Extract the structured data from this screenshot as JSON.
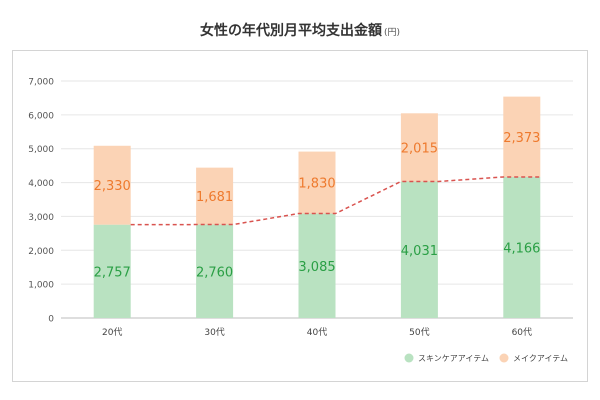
{
  "chart_data": {
    "type": "bar",
    "stacked": true,
    "title": "女性の年代別月平均支出金額",
    "unit": "(円)",
    "categories": [
      "20代",
      "30代",
      "40代",
      "50代",
      "60代"
    ],
    "series": [
      {
        "name": "スキンケアアイテム",
        "values": [
          2757,
          2760,
          3085,
          4031,
          4166
        ],
        "color": "#b9e2c1",
        "label_color": "#2a9f45"
      },
      {
        "name": "メイクアイテム",
        "values": [
          2330,
          1681,
          1830,
          2015,
          2373
        ],
        "color": "#fbd3b5",
        "label_color": "#ee7a2e"
      }
    ],
    "value_labels": [
      [
        "2,757",
        "2,760",
        "3,085",
        "4,031",
        "4,166"
      ],
      [
        "2,330",
        "1,681",
        "1,830",
        "2,015",
        "2,373"
      ]
    ],
    "overlay_line": {
      "values": [
        2757,
        2760,
        3085,
        4031,
        4166
      ],
      "color": "#d9534f",
      "style": "dashed"
    },
    "ylim": [
      0,
      7000
    ],
    "yticks": [
      0,
      1000,
      2000,
      3000,
      4000,
      5000,
      6000,
      7000
    ],
    "ytick_labels": [
      "0",
      "1,000",
      "2,000",
      "3,000",
      "4,000",
      "5,000",
      "6,000",
      "7,000"
    ],
    "grid": true,
    "legend_position": "bottom-right",
    "xlabel": "",
    "ylabel": ""
  }
}
